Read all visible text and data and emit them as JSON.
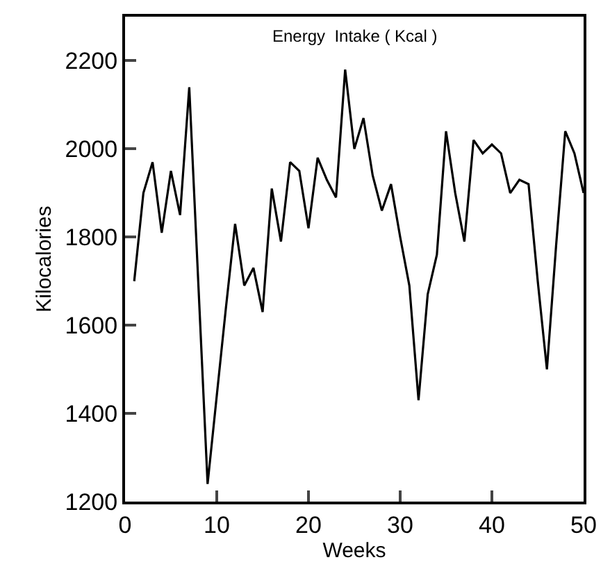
{
  "chart_data": {
    "type": "line",
    "annotations": [
      "Energy  Intake ( Kcal )"
    ],
    "xlabel": "Weeks",
    "ylabel": "Kilocalories",
    "x": [
      1,
      2,
      3,
      4,
      5,
      6,
      7,
      8,
      9,
      10,
      11,
      12,
      13,
      14,
      15,
      16,
      17,
      18,
      19,
      20,
      21,
      22,
      23,
      24,
      25,
      26,
      27,
      28,
      29,
      30,
      31,
      32,
      33,
      34,
      35,
      36,
      37,
      38,
      39,
      40,
      41,
      42,
      43,
      44,
      45,
      46,
      47,
      48,
      49,
      50
    ],
    "series": [
      {
        "color": "#000000",
        "values": [
          1700,
          1900,
          1970,
          1810,
          1950,
          1850,
          2140,
          1690,
          1240,
          1440,
          1640,
          1830,
          1690,
          1730,
          1630,
          1910,
          1790,
          1970,
          1950,
          1820,
          1980,
          1930,
          1890,
          2180,
          2000,
          2070,
          1940,
          1860,
          1920,
          1800,
          1690,
          1430,
          1670,
          1760,
          2040,
          1900,
          1790,
          2020,
          1990,
          2010,
          1990,
          1900,
          1930,
          1920,
          1700,
          1500,
          1780,
          2040,
          1990,
          1900
        ]
      }
    ],
    "xlim": [
      0,
      50
    ],
    "xticks": [
      0,
      10,
      20,
      30,
      40,
      50
    ],
    "ylim": [
      1200,
      2300
    ],
    "yticks": [
      1200,
      1400,
      1600,
      1800,
      2000,
      2200
    ],
    "grid": false,
    "marker": "none",
    "line_style": "solid"
  }
}
